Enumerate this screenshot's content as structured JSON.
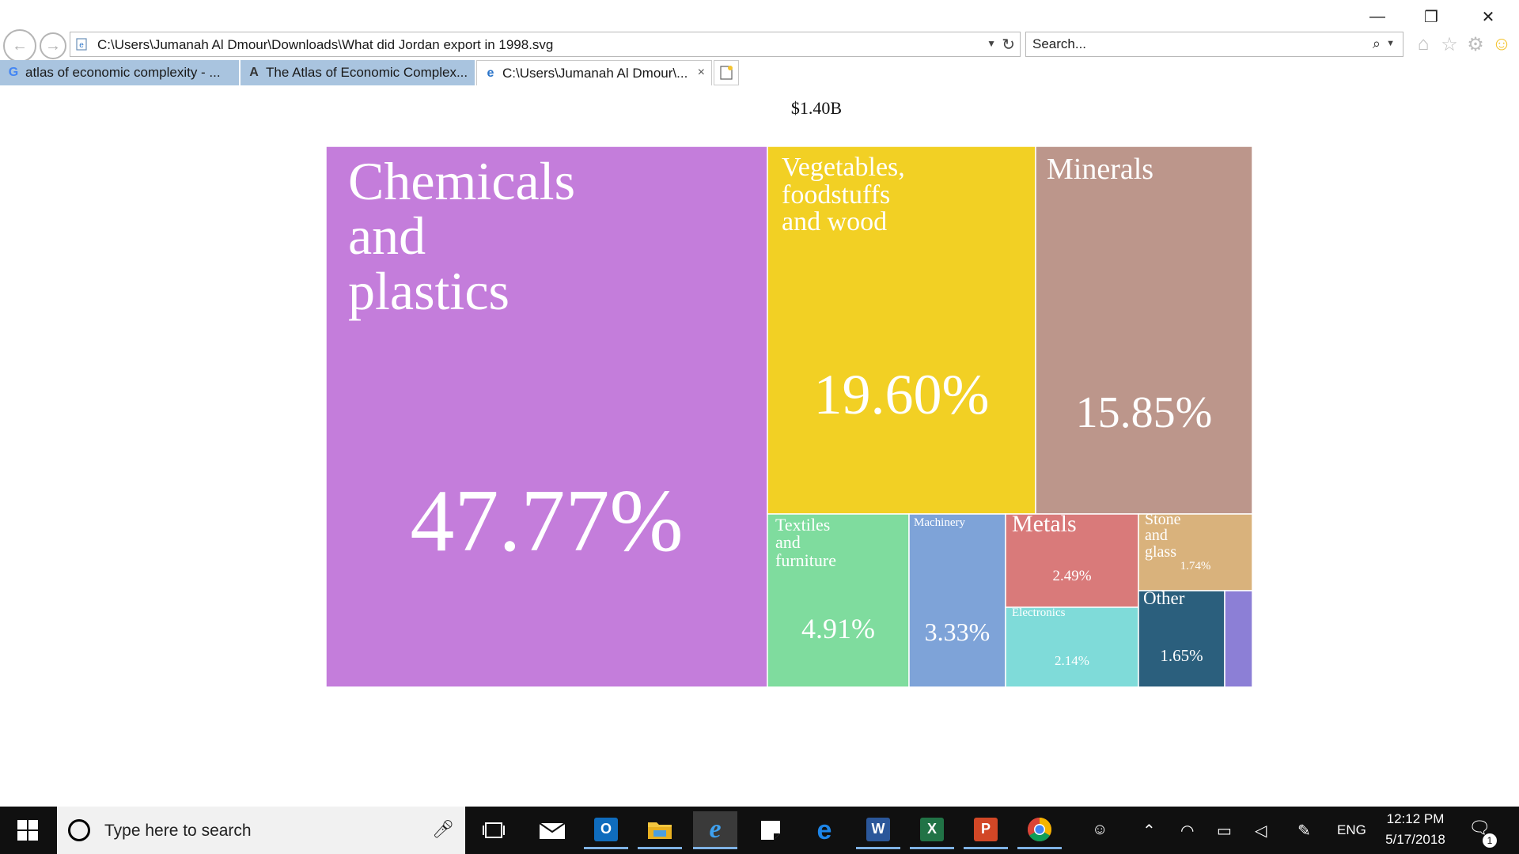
{
  "window_controls": {
    "minimize": "—",
    "restore": "❐",
    "close": "✕"
  },
  "navigation": {
    "back_icon": "arrow-left-icon",
    "forward_icon": "arrow-right-icon"
  },
  "address_bar": {
    "url": "C:\\Users\\Jumanah Al Dmour\\Downloads\\What did Jordan export in 1998.svg"
  },
  "search": {
    "placeholder": "Search..."
  },
  "tabs": [
    {
      "label": "atlas of economic complexity - ...",
      "favicon": "G",
      "active": false
    },
    {
      "label": "The Atlas of Economic Complex...",
      "favicon": "A",
      "active": false
    },
    {
      "label": "C:\\Users\\Jumanah Al Dmour\\...",
      "favicon": "e",
      "active": true
    }
  ],
  "tab_close": "×",
  "page": {
    "total": "$1.40B"
  },
  "chart_data": {
    "type": "treemap",
    "total": "$1.40B",
    "items": [
      {
        "name": "Chemicals\nand\nplastics",
        "value": 47.77,
        "label": "47.77%",
        "color": "#c47ddb"
      },
      {
        "name": "Vegetables,\nfoodstuffs\nand wood",
        "value": 19.6,
        "label": "19.60%",
        "color": "#f2d024"
      },
      {
        "name": "Minerals",
        "value": 15.85,
        "label": "15.85%",
        "color": "#bc968b"
      },
      {
        "name": "Textiles\nand\nfurniture",
        "value": 4.91,
        "label": "4.91%",
        "color": "#7fdc9e"
      },
      {
        "name": "Machinery",
        "value": 3.33,
        "label": "3.33%",
        "color": "#7ea3d8"
      },
      {
        "name": "Metals",
        "value": 2.49,
        "label": "2.49%",
        "color": "#d97a7a"
      },
      {
        "name": "Electronics",
        "value": 2.14,
        "label": "2.14%",
        "color": "#7fdbd9"
      },
      {
        "name": "Stone\nand\nglass",
        "value": 1.74,
        "label": "1.74%",
        "color": "#d9b27c"
      },
      {
        "name": "Other",
        "value": 1.65,
        "label": "1.65%",
        "color": "#2b5f7d"
      },
      {
        "name": "",
        "value": 0.52,
        "label": "",
        "color": "#8c7fd6"
      }
    ]
  },
  "taskbar": {
    "search_placeholder": "Type here to search",
    "apps": [
      "task-view",
      "mail",
      "outlook",
      "file-explorer",
      "internet-explorer",
      "sticky-notes",
      "edge",
      "word",
      "excel",
      "powerpoint",
      "chrome"
    ],
    "language": "ENG",
    "time": "12:12 PM",
    "date": "5/17/2018",
    "notifications": "1"
  }
}
